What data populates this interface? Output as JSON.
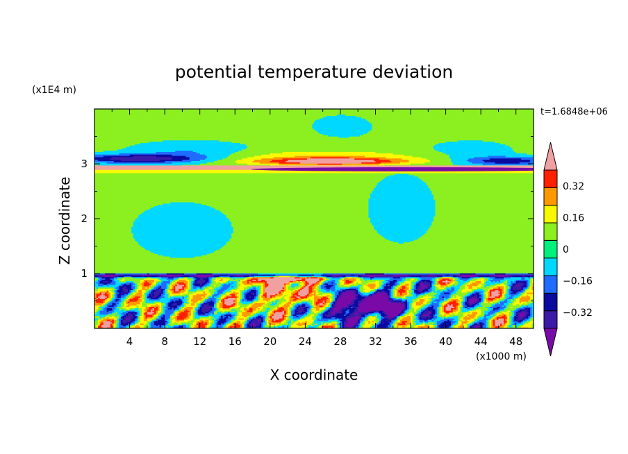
{
  "chart_data": {
    "type": "heatmap",
    "title": "potential temperature deviation",
    "xlabel": "X coordinate",
    "ylabel": "Z coordinate",
    "x_unit": "(x1000 m)",
    "y_unit": "(x1E4 m)",
    "time_label": "t=1.6848e+06",
    "xlim": [
      0,
      50
    ],
    "ylim": [
      0,
      4
    ],
    "x_ticks": [
      4,
      8,
      12,
      16,
      20,
      24,
      28,
      32,
      36,
      40,
      44,
      48
    ],
    "y_ticks": [
      1,
      2,
      3
    ],
    "colorbar": {
      "levels": [
        -0.4,
        -0.32,
        -0.24,
        -0.16,
        -0.08,
        0,
        0.08,
        0.16,
        0.24,
        0.32,
        0.4
      ],
      "tick_labels": [
        "-0.32",
        "-0.16",
        "0",
        "0.16",
        "0.32"
      ],
      "tick_values": [
        -0.32,
        -0.16,
        0,
        0.16,
        0.32
      ],
      "colors": [
        "#7a0aa8",
        "#3c1aa8",
        "#0a0aa0",
        "#1f6cff",
        "#00d8ff",
        "#00f07c",
        "#8cf020",
        "#f8f800",
        "#ff9800",
        "#ff2000",
        "#f0a0a0"
      ],
      "extend": "both"
    },
    "features": [
      {
        "kind": "band",
        "z_center": 2.92,
        "value": 0.4
      },
      {
        "kind": "band",
        "z_center": 2.86,
        "value": -0.4
      },
      {
        "kind": "lens",
        "x_center": 27,
        "z_center": 3.1,
        "value": 0.24
      },
      {
        "kind": "blob",
        "x_center": 31,
        "z_center": 0.45,
        "value": -0.4
      },
      {
        "kind": "layer",
        "z_top": 1.0,
        "value": -0.24
      }
    ]
  }
}
